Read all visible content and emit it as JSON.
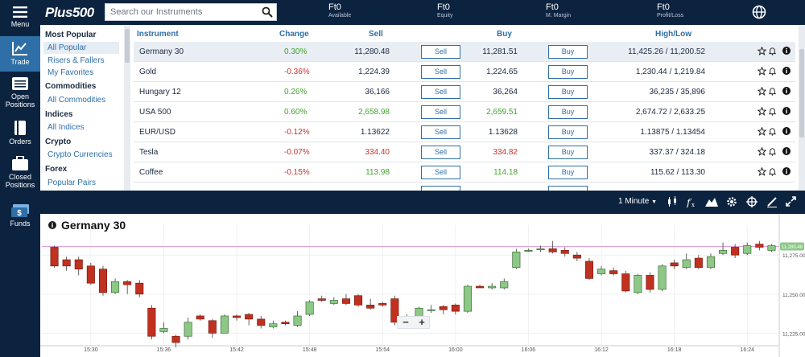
{
  "nav": [
    {
      "label": "Menu",
      "icon": "hamburger-icon"
    },
    {
      "label": "Trade",
      "icon": "chart-line-icon",
      "active": true
    },
    {
      "label": "Open Positions",
      "icon": "list-icon"
    },
    {
      "label": "Orders",
      "icon": "book-icon"
    },
    {
      "label": "Closed Positions",
      "icon": "briefcase-icon"
    },
    {
      "label": "Funds",
      "icon": "money-icon"
    }
  ],
  "header": {
    "logo": "Plus500",
    "search_placeholder": "Search our Instruments",
    "stats": [
      {
        "value": "Ft0",
        "label": "Available"
      },
      {
        "value": "Ft0",
        "label": "Equity"
      },
      {
        "value": "Ft0",
        "label": "M. Margin"
      },
      {
        "value": "Ft0",
        "label": "Profit/Loss"
      }
    ]
  },
  "categories": [
    {
      "heading": "Most Popular",
      "items": [
        "All Popular",
        "Risers & Fallers",
        "My Favorites"
      ]
    },
    {
      "heading": "Commodities",
      "items": [
        "All Commodities"
      ]
    },
    {
      "heading": "Indices",
      "items": [
        "All Indices"
      ]
    },
    {
      "heading": "Crypto",
      "items": [
        "Crypto Currencies"
      ]
    },
    {
      "heading": "Forex",
      "items": [
        "Popular Pairs"
      ]
    }
  ],
  "selected_category": "All Popular",
  "table": {
    "headers": {
      "instrument": "Instrument",
      "change": "Change",
      "sell": "Sell",
      "buy": "Buy",
      "highlow": "High/Low"
    },
    "sell_label": "Sell",
    "buy_label": "Buy",
    "rows": [
      {
        "name": "Germany 30",
        "change": "0.30%",
        "dir": "pos",
        "sell": "11,280.48",
        "buy": "11,281.51",
        "highlow": "11,425.26 / 11,200.52",
        "price_color": "neutral"
      },
      {
        "name": "Gold",
        "change": "-0.36%",
        "dir": "neg",
        "sell": "1,224.39",
        "buy": "1,224.65",
        "highlow": "1,230.44 / 1,219.84",
        "price_color": "neutral"
      },
      {
        "name": "Hungary 12",
        "change": "0.26%",
        "dir": "pos",
        "sell": "36,166",
        "buy": "36,264",
        "highlow": "36,235 / 35,896",
        "price_color": "neutral"
      },
      {
        "name": "USA 500",
        "change": "0.60%",
        "dir": "pos",
        "sell": "2,658.98",
        "buy": "2,659.51",
        "highlow": "2,674.72 / 2,633.25",
        "price_color": "pos"
      },
      {
        "name": "EUR/USD",
        "change": "-0.12%",
        "dir": "neg",
        "sell": "1.13622",
        "buy": "1.13628",
        "highlow": "1.13875 / 1.13454",
        "price_color": "neutral"
      },
      {
        "name": "Tesla",
        "change": "-0.07%",
        "dir": "neg",
        "sell": "334.40",
        "buy": "334.82",
        "highlow": "337.37 / 324.18",
        "price_color": "neg"
      },
      {
        "name": "Coffee",
        "change": "-0.15%",
        "dir": "neg",
        "sell": "113.98",
        "buy": "114.18",
        "highlow": "115.62 / 113.30",
        "price_color": "pos"
      }
    ]
  },
  "chart_toolbar": {
    "timeframe": "1 Minute"
  },
  "chart": {
    "title": "Germany 30",
    "zoom_minus": "−",
    "zoom_plus": "+"
  },
  "chart_data": {
    "type": "candlestick",
    "title": "Germany 30",
    "x": [
      "15:30",
      "15:36",
      "15:42",
      "15:48",
      "15:54",
      "16:00",
      "16:06",
      "16:12",
      "16:18",
      "16:24"
    ],
    "y_ticks": [
      "11,275.00",
      "11,250.00",
      "11,225.00"
    ],
    "ylim": [
      11219,
      11289
    ],
    "current_price": 11280.48,
    "current_price_label": "11,280.48",
    "candles": [
      [
        11280,
        11268,
        11281,
        11267
      ],
      [
        11272,
        11268,
        11274,
        11265
      ],
      [
        11272,
        11266,
        11274,
        11262
      ],
      [
        11268,
        11257,
        11270,
        11256
      ],
      [
        11266,
        11251,
        11268,
        11249
      ],
      [
        11251,
        11258,
        11260,
        11250
      ],
      [
        11258,
        11256,
        11259,
        11250
      ],
      [
        11257,
        11250,
        11259,
        11248
      ],
      [
        11241,
        11223,
        11243,
        11221
      ],
      [
        11226,
        11228,
        11232,
        11225
      ],
      [
        11223,
        11219,
        11224,
        11216
      ],
      [
        11223,
        11232,
        11235,
        11221
      ],
      [
        11236,
        11234,
        11237,
        11233
      ],
      [
        11233,
        11225,
        11234,
        11222
      ],
      [
        11225,
        11236,
        11237,
        11225
      ],
      [
        11236,
        11235,
        11237,
        11233
      ],
      [
        11237,
        11234,
        11238,
        11230
      ],
      [
        11234,
        11230,
        11236,
        11228
      ],
      [
        11229,
        11231,
        11233,
        11228
      ],
      [
        11232,
        11231,
        11233,
        11230
      ],
      [
        11230,
        11236,
        11239,
        11229
      ],
      [
        11237,
        11245,
        11246,
        11236
      ],
      [
        11247,
        11246,
        11249,
        11245
      ],
      [
        11244,
        11246,
        11248,
        11243
      ],
      [
        11247,
        11244,
        11250,
        11243
      ],
      [
        11249,
        11243,
        11250,
        11242
      ],
      [
        11243,
        11241,
        11247,
        11240
      ],
      [
        11244,
        11243,
        11245,
        11242
      ],
      [
        11247,
        11232,
        11249,
        11230
      ],
      [
        11232,
        11233,
        11237,
        11231
      ],
      [
        11233,
        11241,
        11242,
        11232
      ],
      [
        11240,
        11240,
        11243,
        11238
      ],
      [
        11242,
        11240,
        11243,
        11237
      ],
      [
        11243,
        11239,
        11244,
        11237
      ],
      [
        11239,
        11255,
        11256,
        11238
      ],
      [
        11255,
        11254,
        11256,
        11254
      ],
      [
        11254,
        11255,
        11257,
        11253
      ],
      [
        11254,
        11258,
        11260,
        11253
      ],
      [
        11267,
        11277,
        11279,
        11266
      ],
      [
        11278,
        11278,
        11279,
        11277
      ],
      [
        11279,
        11279,
        11281,
        11277
      ],
      [
        11279,
        11277,
        11284,
        11276
      ],
      [
        11278,
        11276,
        11280,
        11274
      ],
      [
        11275,
        11273,
        11277,
        11271
      ],
      [
        11271,
        11260,
        11273,
        11259
      ],
      [
        11263,
        11266,
        11268,
        11262
      ],
      [
        11265,
        11263,
        11267,
        11262
      ],
      [
        11263,
        11252,
        11265,
        11251
      ],
      [
        11251,
        11262,
        11263,
        11250
      ],
      [
        11262,
        11253,
        11264,
        11251
      ],
      [
        11253,
        11268,
        11269,
        11252
      ],
      [
        11270,
        11268,
        11272,
        11266
      ],
      [
        11267,
        11272,
        11276,
        11266
      ],
      [
        11273,
        11267,
        11275,
        11266
      ],
      [
        11267,
        11274,
        11276,
        11266
      ],
      [
        11276,
        11278,
        11283,
        11275
      ],
      [
        11280,
        11275,
        11282,
        11273
      ],
      [
        11276,
        11281,
        11283,
        11275
      ],
      [
        11282,
        11280,
        11284,
        11278
      ],
      [
        11278,
        11281,
        11282,
        11277
      ]
    ]
  },
  "colors": {
    "navy": "#0c2340",
    "accent": "#2f6fa7",
    "up": "#8dc887",
    "down": "#c0311f",
    "price_line": "#e3a1d8"
  }
}
